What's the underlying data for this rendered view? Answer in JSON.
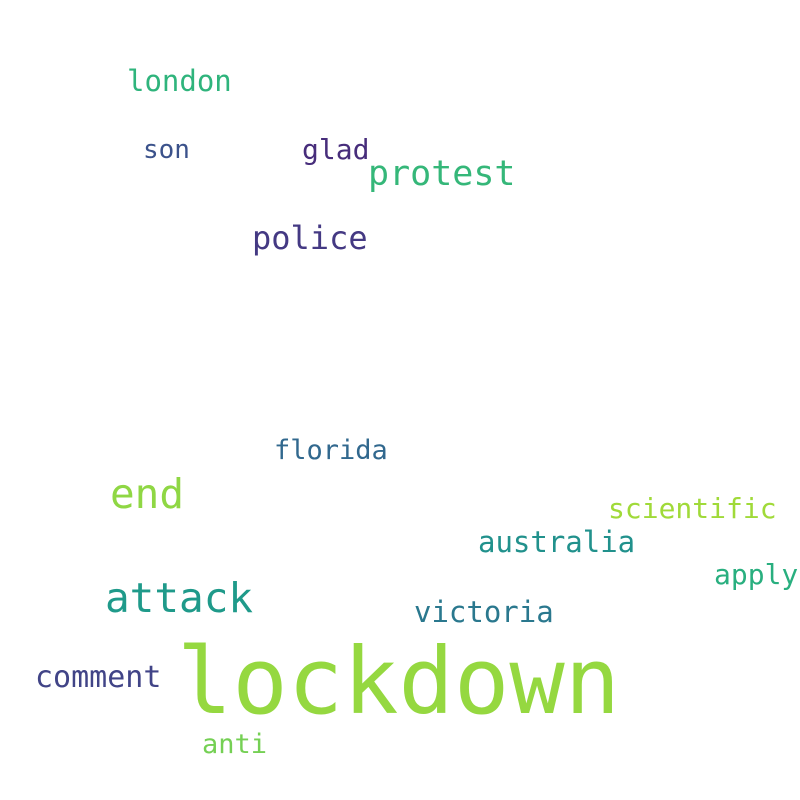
{
  "words": [
    {
      "text": "london",
      "color": "#2fb47c"
    },
    {
      "text": "son",
      "color": "#3b528b"
    },
    {
      "text": "glad",
      "color": "#472d7b"
    },
    {
      "text": "protest",
      "color": "#35b779"
    },
    {
      "text": "police",
      "color": "#443983"
    },
    {
      "text": "florida",
      "color": "#31688e"
    },
    {
      "text": "end",
      "color": "#8fd744"
    },
    {
      "text": "scientific",
      "color": "#a0da39"
    },
    {
      "text": "australia",
      "color": "#21918c"
    },
    {
      "text": "apply",
      "color": "#29af7f"
    },
    {
      "text": "attack",
      "color": "#1f9a8a"
    },
    {
      "text": "victoria",
      "color": "#2a788e"
    },
    {
      "text": "comment",
      "color": "#414487"
    },
    {
      "text": "lockdown",
      "color": "#95d840"
    },
    {
      "text": "anti",
      "color": "#75d054"
    }
  ]
}
